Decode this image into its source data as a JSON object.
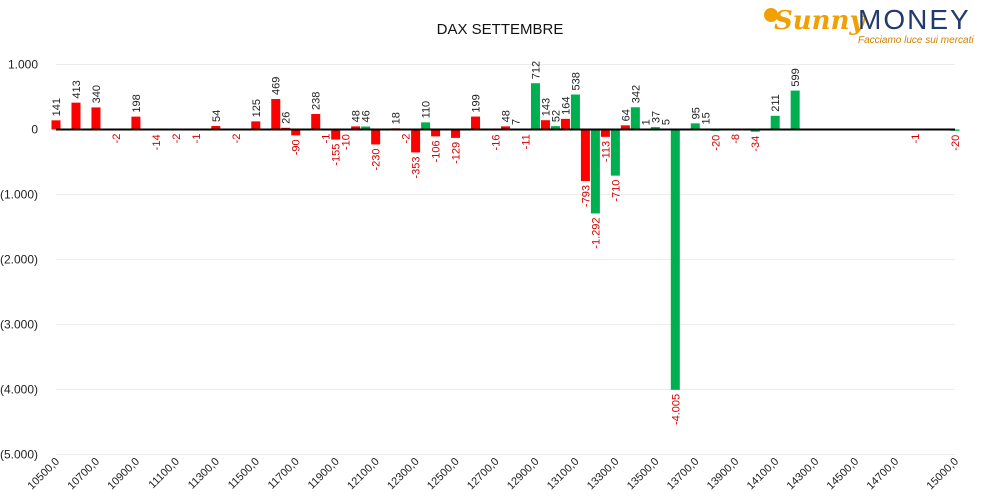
{
  "logo": {
    "brand_left": "Sunny",
    "brand_right": "MONEY",
    "tagline": "Facciamo luce sui mercati"
  },
  "chart_data": {
    "type": "bar",
    "title": "DAX SETTEMBRE",
    "xlabel": "",
    "ylabel": "",
    "ylim": [
      -5000,
      1000
    ],
    "grid": true,
    "y_ticks": [
      "1.000",
      "0",
      "(1.000)",
      "(2.000)",
      "(3.000)",
      "(4.000)",
      "(5.000)"
    ],
    "x_tick_labels": [
      "10500,0",
      "10700,0",
      "10900,0",
      "11100,0",
      "11300,0",
      "11500,0",
      "11700,0",
      "11900,0",
      "12100,0",
      "12300,0",
      "12500,0",
      "12700,0",
      "12900,0",
      "13100,0",
      "13300,0",
      "13500,0",
      "13700,0",
      "13900,0",
      "14100,0",
      "14300,0",
      "14500,0",
      "14700,0",
      "15000,0"
    ],
    "colors": {
      "red": "#ff0000",
      "green": "#00b050",
      "negative_label": "#d40000"
    },
    "bars": [
      {
        "strike": 10500,
        "value": 141,
        "color": "red",
        "label": "141"
      },
      {
        "strike": 10600,
        "value": 413,
        "color": "red",
        "label": "413"
      },
      {
        "strike": 10700,
        "value": 340,
        "color": "red",
        "label": "340"
      },
      {
        "strike": 10800,
        "value": -2,
        "color": "red",
        "label": "-2"
      },
      {
        "strike": 10900,
        "value": 198,
        "color": "red",
        "label": "198"
      },
      {
        "strike": 11000,
        "value": -14,
        "color": "red",
        "label": "-14"
      },
      {
        "strike": 11100,
        "value": -2,
        "color": "red",
        "label": "-2"
      },
      {
        "strike": 11200,
        "value": -1,
        "color": "red",
        "label": "-1"
      },
      {
        "strike": 11300,
        "value": 54,
        "color": "red",
        "label": "54"
      },
      {
        "strike": 11400,
        "value": -2,
        "color": "red",
        "label": "-2"
      },
      {
        "strike": 11500,
        "value": 125,
        "color": "red",
        "label": "125"
      },
      {
        "strike": 11600,
        "value": 469,
        "color": "red",
        "label": "469"
      },
      {
        "strike": 11650,
        "value": 26,
        "color": "red",
        "label": "26"
      },
      {
        "strike": 11700,
        "value": -90,
        "color": "red",
        "label": "-90"
      },
      {
        "strike": 11800,
        "value": 238,
        "color": "red",
        "label": "238"
      },
      {
        "strike": 11850,
        "value": -1,
        "color": "red",
        "label": "-1"
      },
      {
        "strike": 11900,
        "value": -155,
        "color": "red",
        "label": "-155"
      },
      {
        "strike": 11950,
        "value": -10,
        "color": "red",
        "label": "-10"
      },
      {
        "strike": 12000,
        "value": 48,
        "color": "red",
        "label": "48"
      },
      {
        "strike": 12050,
        "value": 46,
        "color": "green",
        "label": "46"
      },
      {
        "strike": 12100,
        "value": -230,
        "color": "red",
        "label": "-230"
      },
      {
        "strike": 12200,
        "value": 18,
        "color": "red",
        "label": "18"
      },
      {
        "strike": 12250,
        "value": -2,
        "color": "red",
        "label": "-2"
      },
      {
        "strike": 12300,
        "value": -353,
        "color": "red",
        "label": "-353"
      },
      {
        "strike": 12350,
        "value": 110,
        "color": "green",
        "label": "110"
      },
      {
        "strike": 12400,
        "value": -106,
        "color": "red",
        "label": "-106"
      },
      {
        "strike": 12500,
        "value": -129,
        "color": "red",
        "label": "-129"
      },
      {
        "strike": 12600,
        "value": 199,
        "color": "red",
        "label": "199"
      },
      {
        "strike": 12700,
        "value": -16,
        "color": "red",
        "label": "-16"
      },
      {
        "strike": 12750,
        "value": 48,
        "color": "red",
        "label": "48"
      },
      {
        "strike": 12800,
        "value": 7,
        "color": "red",
        "label": "7"
      },
      {
        "strike": 12850,
        "value": -11,
        "color": "red",
        "label": "-11"
      },
      {
        "strike": 12900,
        "value": 712,
        "color": "green",
        "label": "712"
      },
      {
        "strike": 12950,
        "value": 143,
        "color": "red",
        "label": "143"
      },
      {
        "strike": 13000,
        "value": 52,
        "color": "green",
        "label": "52"
      },
      {
        "strike": 13050,
        "value": 164,
        "color": "red",
        "label": "164"
      },
      {
        "strike": 13100,
        "value": 538,
        "color": "green",
        "label": "538"
      },
      {
        "strike": 13150,
        "value": -793,
        "color": "red",
        "label": "-793"
      },
      {
        "strike": 13200,
        "value": -1292,
        "color": "green",
        "label": "-1.292"
      },
      {
        "strike": 13250,
        "value": -113,
        "color": "red",
        "label": "-113"
      },
      {
        "strike": 13300,
        "value": -710,
        "color": "green",
        "label": "-710"
      },
      {
        "strike": 13350,
        "value": 64,
        "color": "red",
        "label": "64"
      },
      {
        "strike": 13400,
        "value": 342,
        "color": "green",
        "label": "342"
      },
      {
        "strike": 13450,
        "value": 1,
        "color": "red",
        "label": "1"
      },
      {
        "strike": 13500,
        "value": 37,
        "color": "green",
        "label": "37"
      },
      {
        "strike": 13550,
        "value": 5,
        "color": "red",
        "label": "5"
      },
      {
        "strike": 13600,
        "value": -4005,
        "color": "green",
        "label": "-4.005"
      },
      {
        "strike": 13700,
        "value": 95,
        "color": "green",
        "label": "95"
      },
      {
        "strike": 13750,
        "value": 15,
        "color": "green",
        "label": "15"
      },
      {
        "strike": 13800,
        "value": -20,
        "color": "green",
        "label": "-20"
      },
      {
        "strike": 13900,
        "value": -8,
        "color": "green",
        "label": "-8"
      },
      {
        "strike": 14000,
        "value": -34,
        "color": "green",
        "label": "-34"
      },
      {
        "strike": 14100,
        "value": 211,
        "color": "green",
        "label": "211"
      },
      {
        "strike": 14200,
        "value": 599,
        "color": "green",
        "label": "599"
      },
      {
        "strike": 14800,
        "value": -1,
        "color": "green",
        "label": "-1"
      },
      {
        "strike": 15000,
        "value": -20,
        "color": "green",
        "label": "-20"
      }
    ]
  }
}
